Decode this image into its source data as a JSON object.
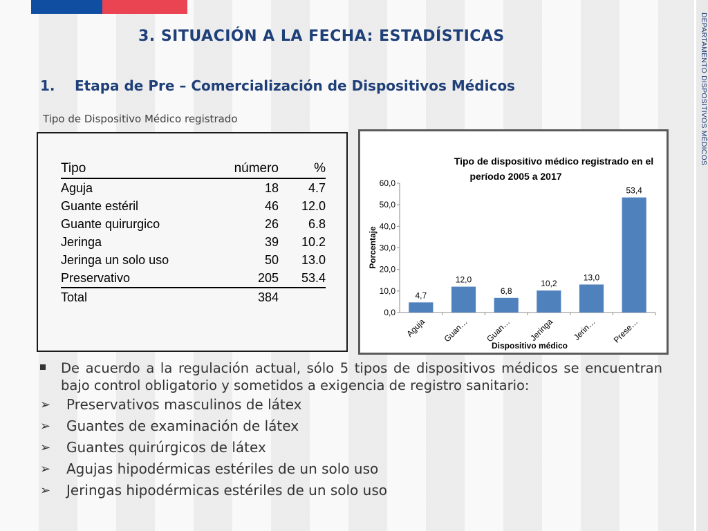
{
  "header": {
    "title": "3. SITUACIÓN A LA FECHA: ESTADÍSTICAS",
    "subtitle_number": "1.",
    "subtitle": "Etapa de Pre – Comercialización de Dispositivos Médicos",
    "caption": "Tipo de Dispositivo Médico registrado",
    "side_label": "DEPARTAMENTO DISPOSITIVOS MÉDICOS"
  },
  "colors": {
    "brand_blue": "#0f4ea0",
    "brand_red": "#ea4352",
    "bar": "#4f81bd",
    "title": "#1f3f78"
  },
  "table": {
    "headers": [
      "Tipo",
      "número",
      "%"
    ],
    "rows": [
      [
        "Aguja",
        "18",
        "4.7"
      ],
      [
        "Guante estéril",
        "46",
        "12.0"
      ],
      [
        "Guante quirurgico",
        "26",
        "6.8"
      ],
      [
        "Jeringa",
        "39",
        "10.2"
      ],
      [
        "Jeringa un solo uso",
        "50",
        "13.0"
      ],
      [
        "Preservativo",
        "205",
        "53.4"
      ]
    ],
    "total": [
      "Total",
      "384",
      ""
    ]
  },
  "chart_data": {
    "type": "bar",
    "title_line1": "Tipo de dispositivo médico registrado en el",
    "title_line2": "período 2005 a 2017",
    "xlabel": "Dispositivo médico",
    "ylabel": "Porcentaje",
    "categories": [
      "Aguja",
      "Guan…",
      "Guan…",
      "Jeringa",
      "Jerin…",
      "Prese…"
    ],
    "values": [
      4.7,
      12.0,
      6.8,
      10.2,
      13.0,
      53.4
    ],
    "value_labels": [
      "4,7",
      "12,0",
      "6,8",
      "10,2",
      "13,0",
      "53,4"
    ],
    "yticks": [
      "0,0",
      "10,0",
      "20,0",
      "30,0",
      "40,0",
      "50,0",
      "60,0"
    ],
    "ylim": [
      0,
      60
    ],
    "grid": false,
    "legend": "none",
    "bar_color": "#4f81bd"
  },
  "bullets": {
    "main": "De acuerdo a la regulación actual, sólo 5 tipos de dispositivos médicos se encuentran bajo control obligatorio y sometidos a exigencia de registro sanitario:",
    "items": [
      "Preservativos masculinos de látex",
      "Guantes de examinación de látex",
      "Guantes quirúrgicos de látex",
      "Agujas hipodérmicas estériles de un solo uso",
      "Jeringas hipodérmicas estériles de un solo uso"
    ]
  }
}
